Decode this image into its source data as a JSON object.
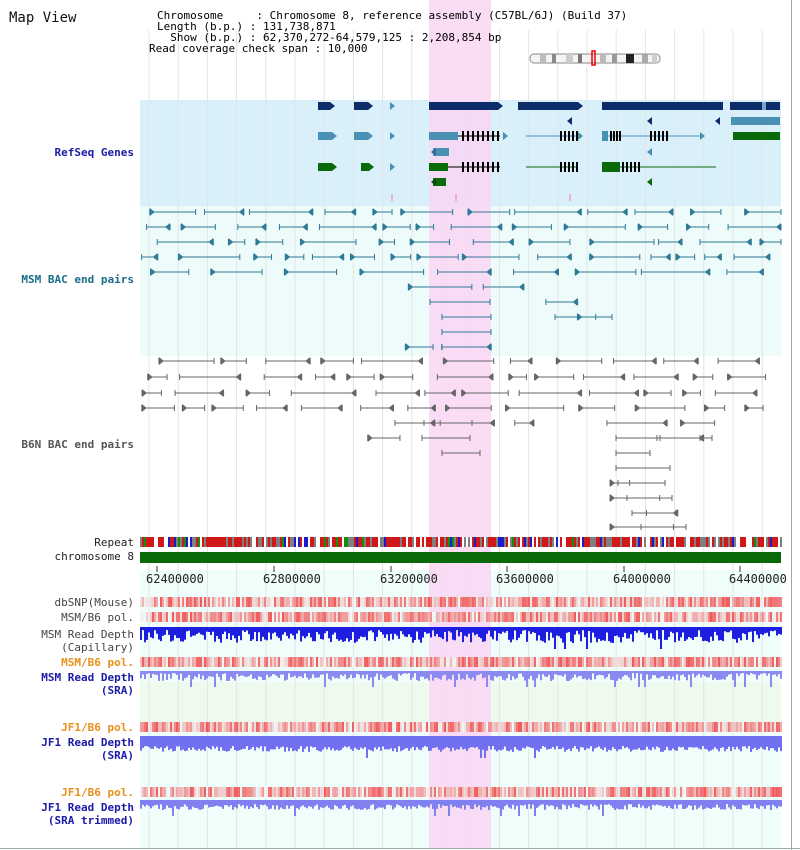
{
  "view": {
    "title": "Map View",
    "chromosome_line": "Chromosome     : Chromosome 8, reference assembly (C57BL/6J) (Build 37)",
    "length_line": "Length (b.p.) : 131,738,871",
    "show_line": "  Show (b.p.) : 62,370,272-64,579,125 : 2,208,854 bp",
    "coverage_line": "Read coverage check span : 10,000"
  },
  "tracks": {
    "refseq": "RefSeq Genes",
    "msm_bac": "MSM BAC end pairs",
    "b6n_bac": "B6N BAC end pairs",
    "repeat": "Repeat",
    "chromosome": "chromosome 8",
    "dbsnp": "dbSNP(Mouse)",
    "msm_b6_pol_1": "MSM/B6 pol.",
    "msm_read_depth_cap_1": "MSM Read Depth",
    "msm_read_depth_cap_2": "(Capillary)",
    "msm_b6_pol_2": "MSM/B6 pol.",
    "msm_read_depth_sra_1": "MSM Read Depth",
    "msm_read_depth_sra_2": "(SRA)",
    "jf1_b6_pol_1": "JF1/B6 pol.",
    "jf1_read_depth_sra_1": "JF1 Read Depth",
    "jf1_read_depth_sra_2": "(SRA)",
    "jf1_b6_pol_2": "JF1/B6 pol.",
    "jf1_read_depth_trim_1": "JF1 Read Depth",
    "jf1_read_depth_trim_2": "(SRA trimmed)"
  },
  "axis": {
    "ticks": [
      "62400000",
      "62800000",
      "63200000",
      "63600000",
      "64000000",
      "64400000"
    ]
  },
  "colors": {
    "refseq_bg": "#d9f0fa",
    "msm_bg": "#eefbfb",
    "highlight": "#f9d6f3",
    "label_blue": "#1a1aa8",
    "label_teal": "#1a6e8a",
    "label_gray": "#444444",
    "label_orange": "#e8901a",
    "gene_navy": "#0c2c6a",
    "gene_teal": "#4a8fb4",
    "gene_green": "#0a6a0a",
    "chromosome_green": "#0a6a0a",
    "depth_blue": "#1e1ee0",
    "depth_light": "#7070f0"
  }
}
